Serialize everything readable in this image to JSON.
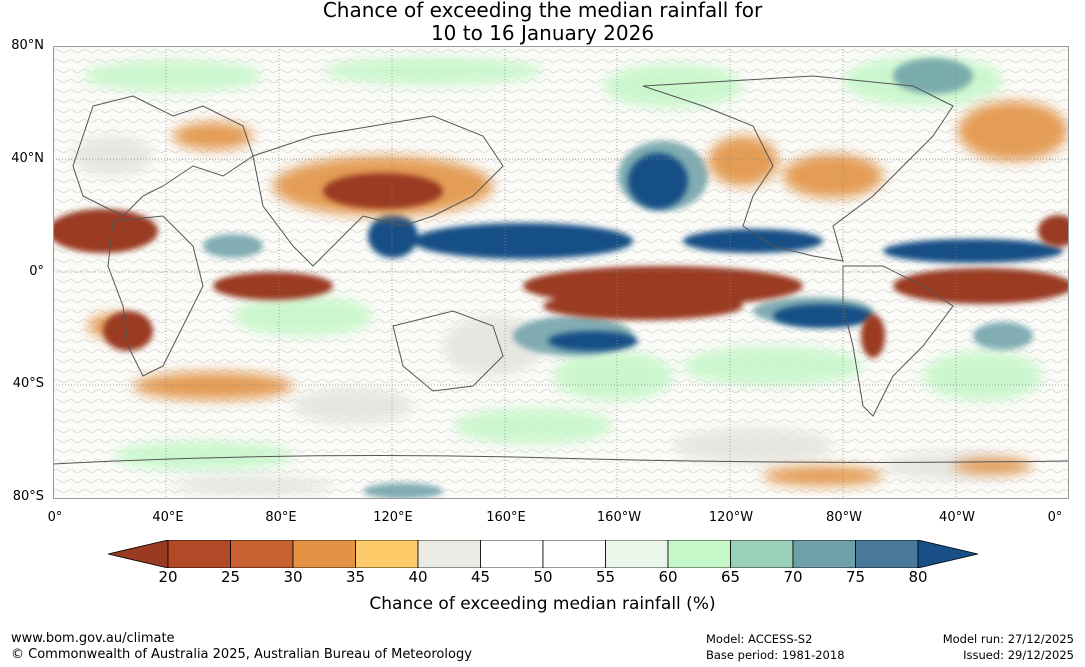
{
  "title_line1": "Chance of exceeding the median rainfall for",
  "title_line2": "10 to 16 January 2026",
  "lat_labels": [
    "80°N",
    "40°N",
    "0°",
    "40°S",
    "80°S"
  ],
  "lon_labels": [
    "0°",
    "40°E",
    "80°E",
    "120°E",
    "160°E",
    "160°W",
    "120°W",
    "80°W",
    "40°W",
    "0°"
  ],
  "colorbar": {
    "labels": [
      "20",
      "25",
      "30",
      "35",
      "40",
      "45",
      "50",
      "55",
      "60",
      "65",
      "70",
      "75",
      "80"
    ],
    "colors": [
      "#9a3a20",
      "#b24a27",
      "#c96232",
      "#e29344",
      "#fdcb6a",
      "#ebebe6",
      "#ffffff",
      "#ffffff",
      "#eaf6ea",
      "#c6f7c9",
      "#9bd0b9",
      "#6da0a8",
      "#4a7a9a",
      "#174f86"
    ],
    "title": "Chance of exceeding median rainfall (%)"
  },
  "footer": {
    "url": "www.bom.gov.au/climate",
    "copyright": "© Commonwealth of Australia 2025, Australian Bureau of Meteorology",
    "model": "Model: ACCESS-S2",
    "base_period": "Base period: 1981-2018",
    "model_run": "Model run: 27/12/2025",
    "issued": "Issued: 29/12/2025"
  }
}
